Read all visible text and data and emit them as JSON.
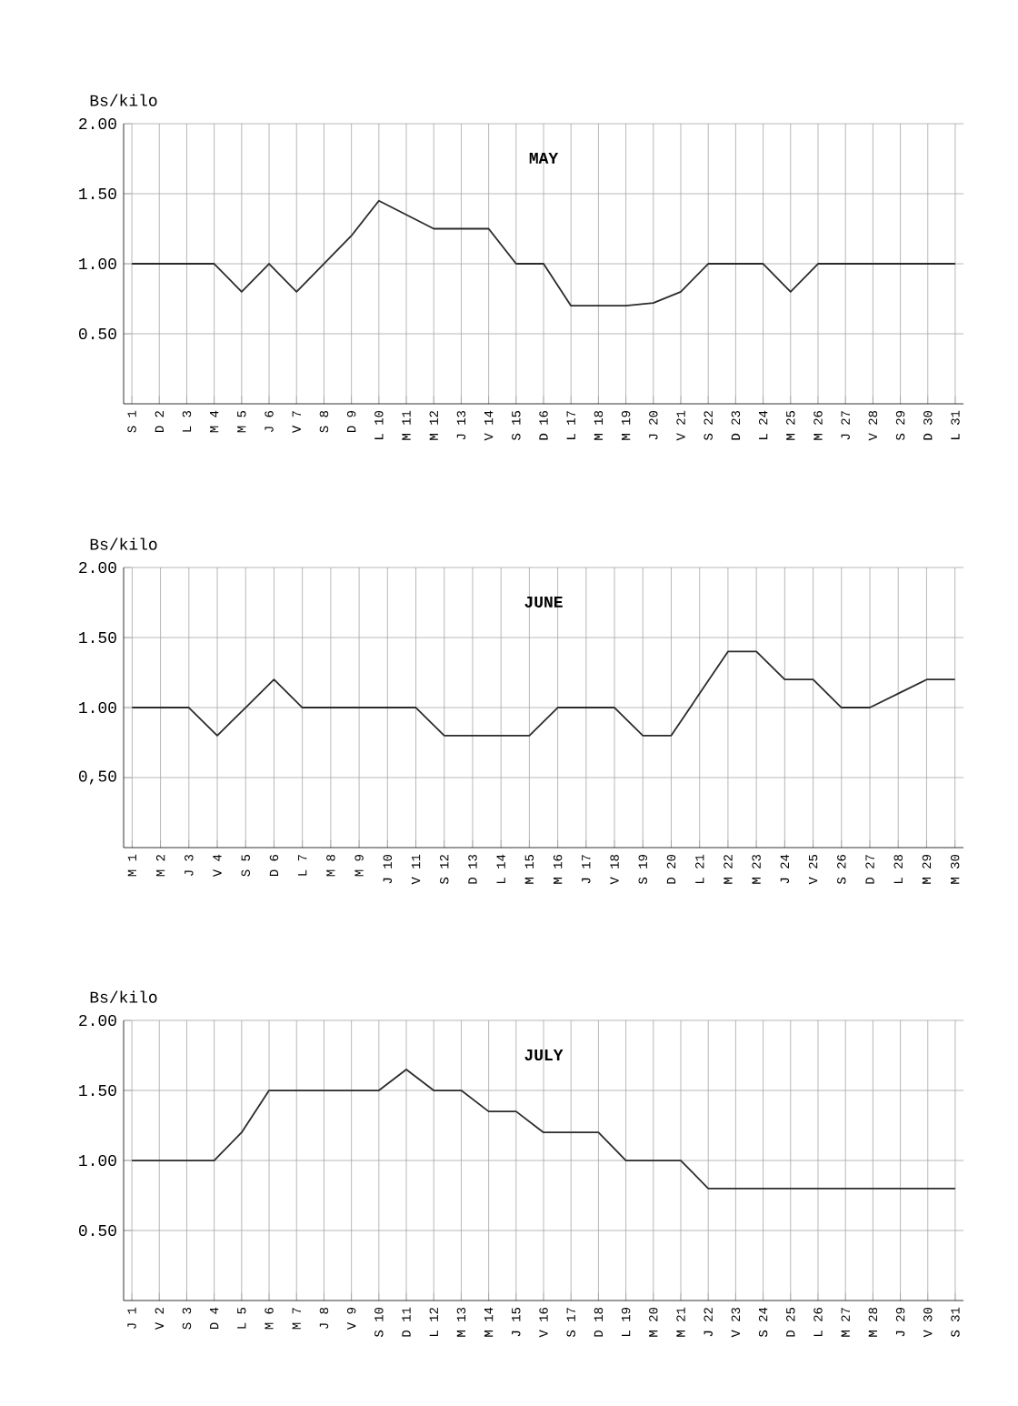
{
  "chart_data": [
    {
      "type": "line",
      "title": "MAY",
      "ylabel": "Bs/kilo",
      "grid": true,
      "marker": "none",
      "line_style": "solid",
      "categories": [
        "S 1",
        "D 2",
        "L 3",
        "M 4",
        "M 5",
        "J 6",
        "V 7",
        "S 8",
        "D 9",
        "L 10",
        "M 11",
        "M 12",
        "J 13",
        "V 14",
        "S 15",
        "D 16",
        "L 17",
        "M 18",
        "M 19",
        "J 20",
        "V 21",
        "S 22",
        "D 23",
        "L 24",
        "M 25",
        "M 26",
        "J 27",
        "V 28",
        "S 29",
        "D 30",
        "L 31"
      ],
      "ylim": [
        0,
        2
      ],
      "yticks": [
        {
          "value": 0.5,
          "label": "0.50"
        },
        {
          "value": 1,
          "label": "1.00"
        },
        {
          "value": 1.5,
          "label": "1.50"
        },
        {
          "value": 2,
          "label": "2.00"
        }
      ],
      "series": [
        {
          "color": "#2b2b2b",
          "values": [
            1.0,
            1.0,
            1.0,
            1.0,
            0.8,
            1.0,
            0.8,
            1.0,
            1.2,
            1.45,
            1.35,
            1.25,
            1.25,
            1.25,
            1.0,
            1.0,
            0.7,
            0.7,
            0.7,
            0.72,
            0.8,
            1.0,
            1.0,
            1.0,
            0.8,
            1.0,
            1.0,
            1.0,
            1.0,
            1.0,
            1.0
          ]
        }
      ]
    },
    {
      "type": "line",
      "title": "JUNE",
      "ylabel": "Bs/kilo",
      "grid": true,
      "marker": "none",
      "line_style": "solid",
      "categories": [
        "M 1",
        "M 2",
        "J 3",
        "V 4",
        "S 5",
        "D 6",
        "L 7",
        "M 8",
        "M 9",
        "J 10",
        "V 11",
        "S 12",
        "D 13",
        "L 14",
        "M 15",
        "M 16",
        "J 17",
        "V 18",
        "S 19",
        "D 20",
        "L 21",
        "M 22",
        "M 23",
        "J 24",
        "V 25",
        "S 26",
        "D 27",
        "L 28",
        "M 29",
        "M 30"
      ],
      "ylim": [
        0,
        2
      ],
      "yticks": [
        {
          "value": 0.5,
          "label": "0,50"
        },
        {
          "value": 1,
          "label": "1.00"
        },
        {
          "value": 1.5,
          "label": "1.50"
        },
        {
          "value": 2,
          "label": "2.00"
        }
      ],
      "series": [
        {
          "color": "#2b2b2b",
          "values": [
            1.0,
            1.0,
            1.0,
            0.8,
            1.0,
            1.2,
            1.0,
            1.0,
            1.0,
            1.0,
            1.0,
            0.8,
            0.8,
            0.8,
            0.8,
            1.0,
            1.0,
            1.0,
            0.8,
            0.8,
            1.1,
            1.4,
            1.4,
            1.2,
            1.2,
            1.0,
            1.0,
            1.1,
            1.2,
            1.2
          ]
        }
      ]
    },
    {
      "type": "line",
      "title": "JULY",
      "ylabel": "Bs/kilo",
      "grid": true,
      "marker": "none",
      "line_style": "solid",
      "categories": [
        "J 1",
        "V 2",
        "S 3",
        "D 4",
        "L 5",
        "M 6",
        "M 7",
        "J 8",
        "V 9",
        "S 10",
        "D 11",
        "L 12",
        "M 13",
        "M 14",
        "J 15",
        "V 16",
        "S 17",
        "D 18",
        "L 19",
        "M 20",
        "M 21",
        "J 22",
        "V 23",
        "S 24",
        "D 25",
        "L 26",
        "M 27",
        "M 28",
        "J 29",
        "V 30",
        "S 31"
      ],
      "ylim": [
        0,
        2
      ],
      "yticks": [
        {
          "value": 0.5,
          "label": "0.50"
        },
        {
          "value": 1,
          "label": "1.00"
        },
        {
          "value": 1.5,
          "label": "1.50"
        },
        {
          "value": 2,
          "label": "2.00"
        }
      ],
      "series": [
        {
          "color": "#2b2b2b",
          "values": [
            1.0,
            1.0,
            1.0,
            1.0,
            1.2,
            1.5,
            1.5,
            1.5,
            1.5,
            1.5,
            1.65,
            1.5,
            1.5,
            1.35,
            1.35,
            1.2,
            1.2,
            1.2,
            1.0,
            1.0,
            1.0,
            0.8,
            0.8,
            0.8,
            0.8,
            0.8,
            0.8,
            0.8,
            0.8,
            0.8,
            0.8
          ]
        }
      ]
    }
  ]
}
